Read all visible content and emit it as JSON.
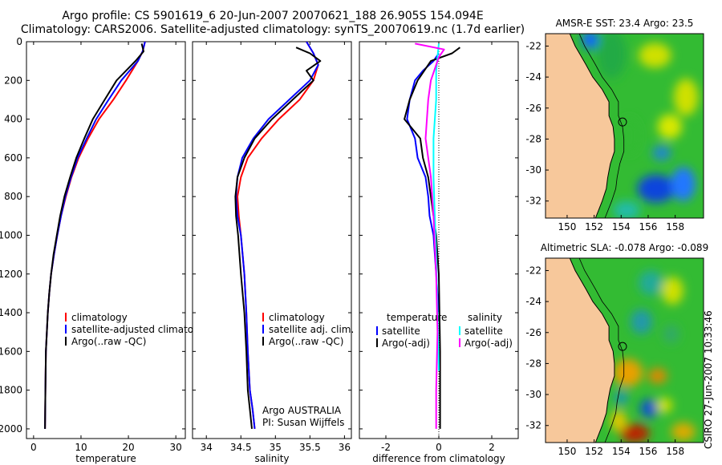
{
  "header": {
    "line1": "Argo profile: CS 5901619_6 20-Jun-2007 20070621_188 26.905S 154.094E",
    "line2": "Climatology: CARS2006. Satellite-adjusted climatology: synTS_20070619.nc (1.7d earlier)"
  },
  "side_label": "CSIRO 27-Jun-2007 10:33:46",
  "colors": {
    "climatology": "#ff0000",
    "satellite": "#0000ff",
    "argo": "#000000",
    "sal_satellite": "#00ffff",
    "sal_argo": "#ff00ff",
    "land": "#f7c89b"
  },
  "chart_data": [
    {
      "type": "line",
      "xlabel": "temperature",
      "ylim": [
        2050,
        0
      ],
      "xlim": [
        -1.5,
        32
      ],
      "xticks": [
        "0",
        "10",
        "20",
        "30"
      ],
      "yticks": [
        "0",
        "200",
        "400",
        "600",
        "800",
        "1000",
        "1200",
        "1400",
        "1600",
        "1800",
        "2000"
      ],
      "legend": [
        "climatology",
        "satellite-adjusted climatology",
        "Argo(..raw -QC)"
      ],
      "series": [
        {
          "name": "climatology",
          "color": "#ff0000",
          "x": [
            23.5,
            23,
            22,
            19.5,
            16.8,
            13.8,
            11.5,
            9.5,
            8,
            6.8,
            5.8,
            5,
            4.3,
            3.7,
            3.3,
            3,
            2.8,
            2.6,
            2.5,
            2.4
          ],
          "y": [
            0,
            50,
            100,
            200,
            300,
            400,
            500,
            600,
            700,
            800,
            900,
            1000,
            1100,
            1200,
            1300,
            1400,
            1500,
            1600,
            1800,
            2000
          ]
        },
        {
          "name": "satellite-adjusted climatology",
          "color": "#0000ff",
          "x": [
            23.5,
            23,
            22,
            18.5,
            15.8,
            13.2,
            11.2,
            9.3,
            7.9,
            6.7,
            5.8,
            5,
            4.3,
            3.7,
            3.3,
            3,
            2.8,
            2.6,
            2.5,
            2.4
          ],
          "y": [
            0,
            50,
            100,
            200,
            300,
            400,
            500,
            600,
            700,
            800,
            900,
            1000,
            1100,
            1200,
            1300,
            1400,
            1500,
            1600,
            1800,
            2000
          ]
        },
        {
          "name": "Argo(..raw -QC)",
          "color": "#000000",
          "x": [
            22.8,
            23.2,
            21.5,
            17.5,
            15,
            12.5,
            10.7,
            9,
            7.7,
            6.5,
            5.6,
            4.9,
            4.2,
            3.7,
            3.3,
            3,
            2.8,
            2.6,
            2.5,
            2.4
          ],
          "y": [
            10,
            50,
            100,
            200,
            300,
            400,
            500,
            600,
            700,
            800,
            900,
            1000,
            1100,
            1200,
            1300,
            1400,
            1500,
            1600,
            1800,
            2000
          ]
        }
      ]
    },
    {
      "type": "line",
      "xlabel": "salinity",
      "ylim": [
        2050,
        0
      ],
      "xlim": [
        33.8,
        36.1
      ],
      "xticks": [
        "34",
        "34.5",
        "35",
        "35.5",
        "36"
      ],
      "legend": [
        "climatology",
        "satellite adj. clim.",
        "Argo(..raw -QC)"
      ],
      "annotation": [
        "Argo AUSTRALIA",
        "PI: Susan Wijffels"
      ],
      "series": [
        {
          "name": "climatology",
          "color": "#ff0000",
          "x": [
            35.45,
            35.55,
            35.62,
            35.55,
            35.35,
            35.05,
            34.8,
            34.6,
            34.5,
            34.45,
            34.47,
            34.5,
            34.55,
            34.58,
            34.6,
            34.63,
            34.67,
            34.7
          ],
          "y": [
            0,
            60,
            120,
            200,
            300,
            400,
            500,
            600,
            700,
            800,
            900,
            1000,
            1200,
            1400,
            1600,
            1800,
            1900,
            2000
          ]
        },
        {
          "name": "satellite adj. clim.",
          "color": "#0000ff",
          "x": [
            35.45,
            35.55,
            35.62,
            35.5,
            35.2,
            34.9,
            34.68,
            34.52,
            34.45,
            34.43,
            34.45,
            34.5,
            34.55,
            34.58,
            34.6,
            34.63,
            34.67,
            34.7
          ],
          "y": [
            0,
            60,
            120,
            200,
            300,
            400,
            500,
            600,
            700,
            800,
            900,
            1000,
            1200,
            1400,
            1600,
            1800,
            1900,
            2000
          ]
        },
        {
          "name": "Argo(..raw -QC)",
          "color": "#000000",
          "x": [
            35.3,
            35.5,
            35.65,
            35.45,
            35.55,
            35.25,
            34.95,
            34.7,
            34.55,
            34.45,
            34.42,
            34.43,
            34.46,
            34.5,
            34.55,
            34.58,
            34.6,
            34.63,
            34.66
          ],
          "y": [
            30,
            60,
            100,
            150,
            200,
            300,
            400,
            500,
            600,
            700,
            800,
            900,
            1000,
            1200,
            1400,
            1600,
            1800,
            1900,
            2000
          ]
        }
      ]
    },
    {
      "type": "line",
      "xlabel": "difference from climatology",
      "ylim": [
        2050,
        0
      ],
      "xlim": [
        -3,
        3
      ],
      "xticks": [
        "-2",
        "0",
        "2"
      ],
      "legend": [
        "temperature",
        "satellite",
        "Argo(-adj)",
        "salinity",
        "satellite",
        "Argo(-adj)"
      ],
      "series": [
        {
          "name": "temperature satellite",
          "color": "#0000ff",
          "x": [
            0,
            -0.2,
            -0.6,
            -0.9,
            -1.1,
            -1.2,
            -0.9,
            -0.8,
            -0.5,
            -0.4,
            -0.35,
            -0.2,
            -0.1,
            0
          ],
          "y": [
            60,
            100,
            150,
            200,
            300,
            400,
            500,
            600,
            700,
            800,
            900,
            1000,
            1200,
            1400
          ]
        },
        {
          "name": "temperature Argo(-adj)",
          "color": "#000000",
          "x": [
            0.8,
            0.5,
            -0.3,
            -0.8,
            -1.1,
            -1.3,
            -0.7,
            -0.6,
            -0.4,
            -0.3,
            -0.2,
            -0.1,
            0,
            0.05,
            0.05
          ],
          "y": [
            30,
            60,
            100,
            200,
            300,
            400,
            500,
            600,
            700,
            800,
            900,
            1000,
            1200,
            1600,
            2000
          ]
        },
        {
          "name": "salinity satellite",
          "color": "#00ffff",
          "x": [
            0,
            -0.1,
            -0.1,
            -0.2,
            -0.2,
            -0.15,
            -0.1,
            -0.05,
            0
          ],
          "y": [
            10,
            150,
            300,
            500,
            700,
            900,
            1100,
            1400,
            1700
          ]
        },
        {
          "name": "salinity Argo(-adj)",
          "color": "#ff00ff",
          "x": [
            -0.9,
            0.2,
            0,
            -0.3,
            -0.4,
            -0.5,
            -0.3,
            -0.2,
            -0.1,
            -0.05,
            -0.1,
            -0.1
          ],
          "y": [
            10,
            40,
            80,
            200,
            300,
            500,
            700,
            900,
            1200,
            1500,
            1800,
            2000
          ]
        }
      ]
    },
    {
      "type": "heatmap",
      "title": "AMSR-E SST: 23.4 Argo: 23.5",
      "xticks": [
        "150",
        "152",
        "154",
        "156",
        "158"
      ],
      "yticks": [
        "-22",
        "-24",
        "-26",
        "-28",
        "-30",
        "-32"
      ],
      "marker": {
        "lon": 154.1,
        "lat": -26.9
      }
    },
    {
      "type": "heatmap",
      "title": "Altimetric SLA: -0.078 Argo: -0.089",
      "xticks": [
        "150",
        "152",
        "154",
        "156",
        "158"
      ],
      "yticks": [
        "-22",
        "-24",
        "-26",
        "-28",
        "-30",
        "-32"
      ],
      "marker": {
        "lon": 154.1,
        "lat": -26.9
      }
    }
  ]
}
